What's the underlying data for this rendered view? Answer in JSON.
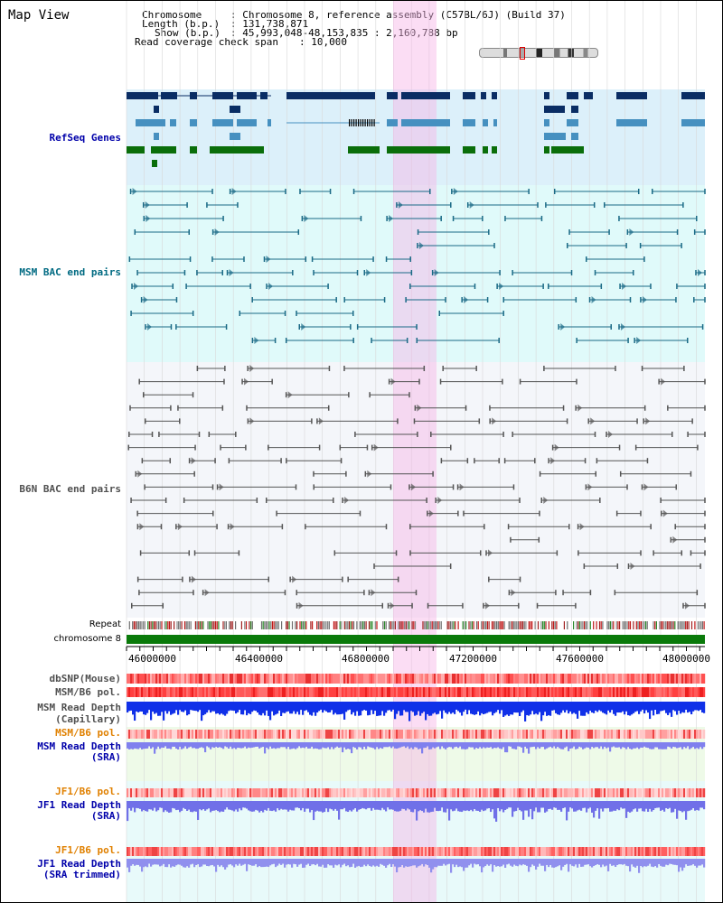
{
  "title": "Map View",
  "header": {
    "chromosome_label": "Chromosome",
    "chromosome_value": ": Chromosome 8, reference assembly (C57BL/6J) (Build 37)",
    "length_label": "Length (b.p.)",
    "length_value": ": 131,738,871",
    "show_label": "Show (b.p.)",
    "show_value": ": 45,993,048-48,153,835 : 2,160,788 bp",
    "read_cov_label": "Read coverage check span",
    "read_cov_value": ": 10,000"
  },
  "tracks": {
    "refseq": "RefSeq Genes",
    "msm_bac": "MSM BAC end pairs",
    "b6n_bac": "B6N BAC end pairs",
    "repeat": "Repeat",
    "chromosome": "chromosome 8",
    "dbsnp": "dbSNP(Mouse)",
    "msm_b6_pol_1": "MSM/B6 pol.",
    "msm_read_depth_cap_1": "MSM Read Depth",
    "msm_read_depth_cap_2": "(Capillary)",
    "msm_b6_pol_2": "MSM/B6 pol.",
    "msm_read_depth_sra_1": "MSM Read Depth",
    "msm_read_depth_sra_2": "(SRA)",
    "jf1_b6_pol_1": "JF1/B6 pol.",
    "jf1_read_depth_sra_1": "JF1 Read Depth",
    "jf1_read_depth_sra_2": "(SRA)",
    "jf1_b6_pol_2": "JF1/B6 pol.",
    "jf1_read_depth_trim_1": "JF1 Read Depth",
    "jf1_read_depth_trim_2": "(SRA trimmed)"
  },
  "axis": {
    "ticks": [
      "46000000",
      "46400000",
      "46800000",
      "47200000",
      "47600000",
      "48000000"
    ]
  },
  "colors": {
    "refseq_bg": "#dcf0fa",
    "msm_bg": "#e0fafa",
    "b6n_bg": "#f4f6fa",
    "highlight": "#f9dcf2",
    "gene_dark": "#0a2d64",
    "gene_mid": "#4690c0",
    "gene_green": "#0a6e0a",
    "msm_line": "#1a6a86",
    "b6n_line": "#555555",
    "label_blue": "#0000aa",
    "label_teal": "#006a82",
    "label_gray": "#505050",
    "label_orange": "#e08000"
  }
}
